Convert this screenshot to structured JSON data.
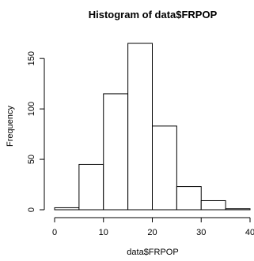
{
  "chart_data": {
    "type": "bar",
    "title": "Histogram of data$FRPOP",
    "xlabel": "data$FRPOP",
    "ylabel": "Frequency",
    "bins": [
      {
        "start": 0,
        "end": 5,
        "count": 2
      },
      {
        "start": 5,
        "end": 10,
        "count": 45
      },
      {
        "start": 10,
        "end": 15,
        "count": 115
      },
      {
        "start": 15,
        "end": 20,
        "count": 165
      },
      {
        "start": 20,
        "end": 25,
        "count": 83
      },
      {
        "start": 25,
        "end": 30,
        "count": 23
      },
      {
        "start": 30,
        "end": 35,
        "count": 9
      },
      {
        "start": 35,
        "end": 40,
        "count": 1
      }
    ],
    "xticks": [
      0,
      10,
      20,
      30,
      40
    ],
    "yticks": [
      0,
      50,
      100,
      150
    ],
    "xlim": [
      0,
      40
    ],
    "ylim": [
      0,
      165
    ],
    "grid": false,
    "bar_fill": "#ffffff",
    "bar_stroke": "#000000"
  }
}
